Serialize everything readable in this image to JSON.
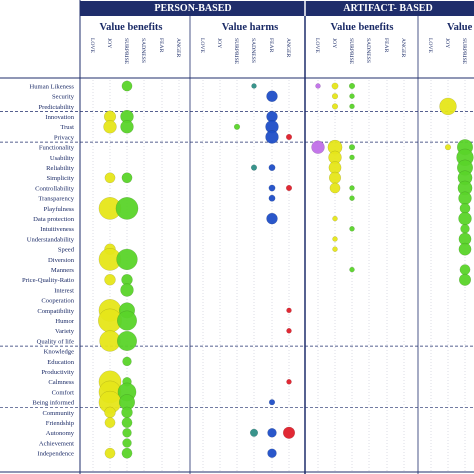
{
  "chart_data": {
    "type": "scatter",
    "title": "",
    "groups": [
      {
        "label": "PERSON-BASED",
        "sections": [
          "Value benefits",
          "Value harms"
        ]
      },
      {
        "label": "ARTIFACT- BASED",
        "sections": [
          "Value benefits",
          "Value"
        ]
      }
    ],
    "emotions": [
      "LOVE",
      "JOY",
      "SURPRISE",
      "SADNESS",
      "FEAR",
      "ANGER"
    ],
    "rows": [
      "Human Likeness",
      "Security",
      "Predictability",
      "Innovation",
      "Trust",
      "Privacy",
      "Functionality",
      "Usability",
      "Reliability",
      "Simplicity",
      "Controllability",
      "Transparency",
      "Playfulness",
      "Data protection",
      "Intuitiveness",
      "Understandability",
      "Speed",
      "Diversion",
      "Manners",
      "Price-Quality-Ratio",
      "Interest",
      "Cooperation",
      "Compatibility",
      "Humor",
      "Variety",
      "Quality of life",
      "Knowledge",
      "Education",
      "Productivity",
      "Calmness",
      "Comfort",
      "Being informed",
      "Community",
      "Friendship",
      "Autonomy",
      "Achievement",
      "Independence"
    ],
    "row_groups_end": [
      2,
      5,
      25,
      31
    ],
    "emotion_colors": {
      "LOVE": "#c070e8",
      "JOY": "#e6e61a",
      "SURPRISE": "#5ad42a",
      "SADNESS": "#2f8f86",
      "FEAR": "#1f4fc8",
      "ANGER": "#e01e2a"
    },
    "points": [
      {
        "row": "Human Likeness",
        "section": 0,
        "emotion": "SURPRISE",
        "size": 1.2
      },
      {
        "row": "Human Likeness",
        "section": 1,
        "emotion": "SADNESS",
        "size": 0.4
      },
      {
        "row": "Human Likeness",
        "section": 2,
        "emotion": "LOVE",
        "size": 0.4
      },
      {
        "row": "Human Likeness",
        "section": 2,
        "emotion": "JOY",
        "size": 0.6
      },
      {
        "row": "Human Likeness",
        "section": 2,
        "emotion": "SURPRISE",
        "size": 0.5
      },
      {
        "row": "Security",
        "section": 1,
        "emotion": "FEAR",
        "size": 1.3
      },
      {
        "row": "Security",
        "section": 2,
        "emotion": "JOY",
        "size": 0.5
      },
      {
        "row": "Security",
        "section": 2,
        "emotion": "SURPRISE",
        "size": 0.4
      },
      {
        "row": "Predictability",
        "section": 2,
        "emotion": "JOY",
        "size": 0.5
      },
      {
        "row": "Predictability",
        "section": 2,
        "emotion": "SURPRISE",
        "size": 0.4
      },
      {
        "row": "Predictability",
        "section": 3,
        "emotion": "JOY",
        "size": 2.2
      },
      {
        "row": "Innovation",
        "section": 0,
        "emotion": "JOY",
        "size": 1.4
      },
      {
        "row": "Innovation",
        "section": 0,
        "emotion": "SURPRISE",
        "size": 1.6
      },
      {
        "row": "Innovation",
        "section": 1,
        "emotion": "FEAR",
        "size": 1.3
      },
      {
        "row": "Trust",
        "section": 0,
        "emotion": "JOY",
        "size": 1.6
      },
      {
        "row": "Trust",
        "section": 0,
        "emotion": "SURPRISE",
        "size": 1.6
      },
      {
        "row": "Trust",
        "section": 1,
        "emotion": "SURPRISE",
        "size": 0.5
      },
      {
        "row": "Trust",
        "section": 1,
        "emotion": "FEAR",
        "size": 1.6
      },
      {
        "row": "Privacy",
        "section": 1,
        "emotion": "FEAR",
        "size": 1.6
      },
      {
        "row": "Privacy",
        "section": 1,
        "emotion": "ANGER",
        "size": 0.5
      },
      {
        "row": "Functionality",
        "section": 2,
        "emotion": "LOVE",
        "size": 1.6
      },
      {
        "row": "Functionality",
        "section": 2,
        "emotion": "JOY",
        "size": 1.8
      },
      {
        "row": "Functionality",
        "section": 2,
        "emotion": "SURPRISE",
        "size": 0.5
      },
      {
        "row": "Functionality",
        "section": 3,
        "emotion": "JOY",
        "size": 0.5
      },
      {
        "row": "Functionality",
        "section": 3,
        "emotion": "SURPRISE",
        "size": 2.0
      },
      {
        "row": "Usability",
        "section": 2,
        "emotion": "JOY",
        "size": 1.6
      },
      {
        "row": "Usability",
        "section": 2,
        "emotion": "SURPRISE",
        "size": 0.4
      },
      {
        "row": "Usability",
        "section": 3,
        "emotion": "SURPRISE",
        "size": 2.2
      },
      {
        "row": "Reliability",
        "section": 1,
        "emotion": "SADNESS",
        "size": 0.5
      },
      {
        "row": "Reliability",
        "section": 1,
        "emotion": "FEAR",
        "size": 0.6
      },
      {
        "row": "Reliability",
        "section": 2,
        "emotion": "JOY",
        "size": 1.5
      },
      {
        "row": "Reliability",
        "section": 3,
        "emotion": "SURPRISE",
        "size": 2.0
      },
      {
        "row": "Simplicity",
        "section": 0,
        "emotion": "JOY",
        "size": 1.2
      },
      {
        "row": "Simplicity",
        "section": 0,
        "emotion": "SURPRISE",
        "size": 1.2
      },
      {
        "row": "Simplicity",
        "section": 2,
        "emotion": "JOY",
        "size": 1.4
      },
      {
        "row": "Simplicity",
        "section": 3,
        "emotion": "SURPRISE",
        "size": 1.8
      },
      {
        "row": "Controllability",
        "section": 1,
        "emotion": "FEAR",
        "size": 0.6
      },
      {
        "row": "Controllability",
        "section": 1,
        "emotion": "ANGER",
        "size": 0.5
      },
      {
        "row": "Controllability",
        "section": 2,
        "emotion": "JOY",
        "size": 1.2
      },
      {
        "row": "Controllability",
        "section": 2,
        "emotion": "SURPRISE",
        "size": 0.4
      },
      {
        "row": "Controllability",
        "section": 3,
        "emotion": "SURPRISE",
        "size": 1.8
      },
      {
        "row": "Transparency",
        "section": 1,
        "emotion": "FEAR",
        "size": 0.6
      },
      {
        "row": "Transparency",
        "section": 2,
        "emotion": "SURPRISE",
        "size": 0.4
      },
      {
        "row": "Transparency",
        "section": 3,
        "emotion": "SURPRISE",
        "size": 1.6
      },
      {
        "row": "Playfulness",
        "section": 0,
        "emotion": "JOY",
        "size": 3.0
      },
      {
        "row": "Playfulness",
        "section": 0,
        "emotion": "SURPRISE",
        "size": 3.0
      },
      {
        "row": "Playfulness",
        "section": 3,
        "emotion": "SURPRISE",
        "size": 1.2
      },
      {
        "row": "Data protection",
        "section": 1,
        "emotion": "FEAR",
        "size": 1.3
      },
      {
        "row": "Data protection",
        "section": 2,
        "emotion": "JOY",
        "size": 0.4
      },
      {
        "row": "Data protection",
        "section": 3,
        "emotion": "SURPRISE",
        "size": 1.6
      },
      {
        "row": "Intuitiveness",
        "section": 2,
        "emotion": "SURPRISE",
        "size": 0.4
      },
      {
        "row": "Intuitiveness",
        "section": 3,
        "emotion": "SURPRISE",
        "size": 1.0
      },
      {
        "row": "Understandability",
        "section": 2,
        "emotion": "JOY",
        "size": 0.4
      },
      {
        "row": "Understandability",
        "section": 3,
        "emotion": "SURPRISE",
        "size": 1.5
      },
      {
        "row": "Speed",
        "section": 0,
        "emotion": "JOY",
        "size": 1.3
      },
      {
        "row": "Speed",
        "section": 2,
        "emotion": "JOY",
        "size": 0.4
      },
      {
        "row": "Speed",
        "section": 3,
        "emotion": "SURPRISE",
        "size": 1.5
      },
      {
        "row": "Diversion",
        "section": 0,
        "emotion": "JOY",
        "size": 3.0
      },
      {
        "row": "Diversion",
        "section": 0,
        "emotion": "SURPRISE",
        "size": 2.8
      },
      {
        "row": "Manners",
        "section": 2,
        "emotion": "SURPRISE",
        "size": 0.4
      },
      {
        "row": "Manners",
        "section": 3,
        "emotion": "SURPRISE",
        "size": 1.2
      },
      {
        "row": "Price-Quality-Ratio",
        "section": 0,
        "emotion": "JOY",
        "size": 1.3
      },
      {
        "row": "Price-Quality-Ratio",
        "section": 0,
        "emotion": "SURPRISE",
        "size": 1.3
      },
      {
        "row": "Price-Quality-Ratio",
        "section": 3,
        "emotion": "SURPRISE",
        "size": 1.4
      },
      {
        "row": "Interest",
        "section": 0,
        "emotion": "SURPRISE",
        "size": 1.6
      },
      {
        "row": "Compatibility",
        "section": 0,
        "emotion": "JOY",
        "size": 3.0
      },
      {
        "row": "Compatibility",
        "section": 0,
        "emotion": "SURPRISE",
        "size": 2.0
      },
      {
        "row": "Compatibility",
        "section": 1,
        "emotion": "ANGER",
        "size": 0.4
      },
      {
        "row": "Humor",
        "section": 0,
        "emotion": "JOY",
        "size": 3.2
      },
      {
        "row": "Humor",
        "section": 0,
        "emotion": "SURPRISE",
        "size": 2.6
      },
      {
        "row": "Variety",
        "section": 1,
        "emotion": "ANGER",
        "size": 0.4
      },
      {
        "row": "Quality of life",
        "section": 0,
        "emotion": "JOY",
        "size": 2.8
      },
      {
        "row": "Quality of life",
        "section": 0,
        "emotion": "SURPRISE",
        "size": 2.6
      },
      {
        "row": "Education",
        "section": 0,
        "emotion": "SURPRISE",
        "size": 1.0
      },
      {
        "row": "Calmness",
        "section": 0,
        "emotion": "JOY",
        "size": 3.0
      },
      {
        "row": "Calmness",
        "section": 0,
        "emotion": "SURPRISE",
        "size": 1.0
      },
      {
        "row": "Calmness",
        "section": 1,
        "emotion": "ANGER",
        "size": 0.4
      },
      {
        "row": "Comfort",
        "section": 0,
        "emotion": "JOY",
        "size": 3.0
      },
      {
        "row": "Comfort",
        "section": 0,
        "emotion": "SURPRISE",
        "size": 2.4
      },
      {
        "row": "Being informed",
        "section": 0,
        "emotion": "JOY",
        "size": 3.0
      },
      {
        "row": "Being informed",
        "section": 0,
        "emotion": "SURPRISE",
        "size": 2.0
      },
      {
        "row": "Being informed",
        "section": 1,
        "emotion": "FEAR",
        "size": 0.5
      },
      {
        "row": "Community",
        "section": 0,
        "emotion": "JOY",
        "size": 1.3
      },
      {
        "row": "Community",
        "section": 0,
        "emotion": "SURPRISE",
        "size": 1.3
      },
      {
        "row": "Friendship",
        "section": 0,
        "emotion": "JOY",
        "size": 1.2
      },
      {
        "row": "Friendship",
        "section": 0,
        "emotion": "SURPRISE",
        "size": 1.2
      },
      {
        "row": "Autonomy",
        "section": 0,
        "emotion": "SURPRISE",
        "size": 1.0
      },
      {
        "row": "Autonomy",
        "section": 1,
        "emotion": "SADNESS",
        "size": 0.8
      },
      {
        "row": "Autonomy",
        "section": 1,
        "emotion": "FEAR",
        "size": 1.0
      },
      {
        "row": "Autonomy",
        "section": 1,
        "emotion": "ANGER",
        "size": 1.4
      },
      {
        "row": "Achievement",
        "section": 0,
        "emotion": "SURPRISE",
        "size": 1.0
      },
      {
        "row": "Independence",
        "section": 0,
        "emotion": "JOY",
        "size": 1.2
      },
      {
        "row": "Independence",
        "section": 0,
        "emotion": "SURPRISE",
        "size": 1.2
      },
      {
        "row": "Independence",
        "section": 1,
        "emotion": "FEAR",
        "size": 1.0
      }
    ]
  }
}
